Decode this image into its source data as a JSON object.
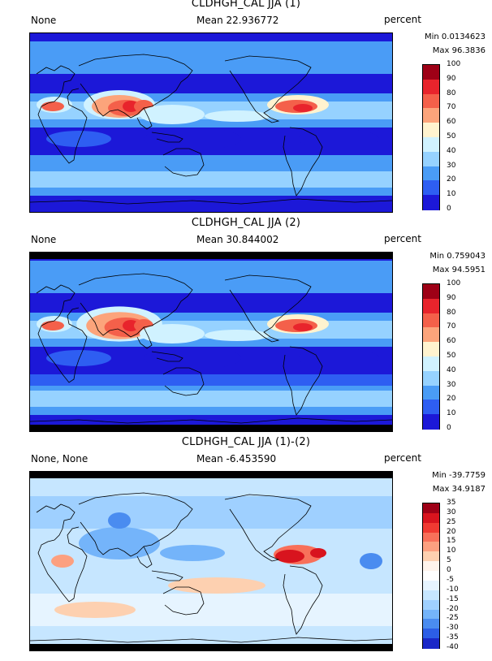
{
  "chart_data": [
    {
      "type": "heatmap",
      "title": "CLDHGH_CAL JJA (1)",
      "left_label": "None",
      "mean_label": "Mean 22.936772",
      "units": "percent",
      "min_label": "Min 0.0134623",
      "max_label": "Max 96.3836",
      "colorbar_levels": [
        "100",
        "90",
        "80",
        "70",
        "60",
        "50",
        "40",
        "30",
        "20",
        "10",
        "0"
      ],
      "colorbar_colors": [
        "#9e0016",
        "#e8242c",
        "#f4604a",
        "#fca47b",
        "#fff3cf",
        "#d0f2ff",
        "#96d2ff",
        "#4a9cf6",
        "#2e5ef2",
        "#1c18d8"
      ],
      "itcz_pattern": "strong-tropical-high-cloud"
    },
    {
      "type": "heatmap",
      "title": "CLDHGH_CAL JJA (2)",
      "left_label": "None",
      "mean_label": "Mean 30.844002",
      "units": "percent",
      "min_label": "Min 0.759043",
      "max_label": "Max 94.5951",
      "colorbar_levels": [
        "100",
        "90",
        "80",
        "70",
        "60",
        "50",
        "40",
        "30",
        "20",
        "10",
        "0"
      ],
      "colorbar_colors": [
        "#9e0016",
        "#e8242c",
        "#f4604a",
        "#fca47b",
        "#fff3cf",
        "#d0f2ff",
        "#96d2ff",
        "#4a9cf6",
        "#2e5ef2",
        "#1c18d8"
      ],
      "itcz_pattern": "broader-tropical-high-cloud"
    },
    {
      "type": "heatmap",
      "title": "CLDHGH_CAL JJA (1)-(2)",
      "left_label": "None, None",
      "mean_label": "Mean -6.453590",
      "units": "percent",
      "min_label": "Min -39.7759",
      "max_label": "Max 34.9187",
      "colorbar_levels": [
        "35",
        "30",
        "25",
        "20",
        "15",
        "10",
        "5",
        "0",
        "-5",
        "-10",
        "-15",
        "-20",
        "-25",
        "-30",
        "-35",
        "-40"
      ],
      "colorbar_colors": [
        "#9e0016",
        "#d8141e",
        "#f03a32",
        "#f8705a",
        "#fca080",
        "#fdd0b0",
        "#fff4ec",
        "#ffffff",
        "#e6f4ff",
        "#c6e6ff",
        "#9fd0ff",
        "#74b4fa",
        "#4a8cf0",
        "#2c5ee6",
        "#1a28c8"
      ],
      "itcz_pattern": "difference"
    }
  ]
}
